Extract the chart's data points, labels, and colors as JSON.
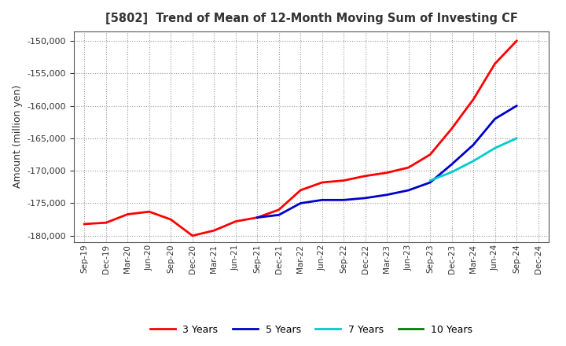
{
  "title": "[5802]  Trend of Mean of 12-Month Moving Sum of Investing CF",
  "ylabel": "Amount (million yen)",
  "ylim": [
    -181000,
    -148500
  ],
  "yticks": [
    -180000,
    -175000,
    -170000,
    -165000,
    -160000,
    -155000,
    -150000
  ],
  "background_color": "#ffffff",
  "plot_bg_color": "#ffffff",
  "grid_color": "#999999",
  "series": [
    {
      "label": "3 Years",
      "color": "#ff0000",
      "x": [
        "Sep-19",
        "Dec-19",
        "Mar-20",
        "Jun-20",
        "Sep-20",
        "Dec-20",
        "Mar-21",
        "Jun-21",
        "Sep-21",
        "Dec-21",
        "Mar-22",
        "Jun-22",
        "Sep-22",
        "Dec-22",
        "Mar-23",
        "Jun-23",
        "Sep-23",
        "Dec-23",
        "Mar-24",
        "Jun-24",
        "Sep-24"
      ],
      "y": [
        -178200,
        -178000,
        -176700,
        -176300,
        -177500,
        -180000,
        -179200,
        -177800,
        -177200,
        -176000,
        -173000,
        -171800,
        -171500,
        -170800,
        -170300,
        -169500,
        -167500,
        -163500,
        -159000,
        -153500,
        -150000
      ]
    },
    {
      "label": "5 Years",
      "color": "#0000cc",
      "x": [
        "Sep-21",
        "Dec-21",
        "Mar-22",
        "Jun-22",
        "Sep-22",
        "Dec-22",
        "Mar-23",
        "Jun-23",
        "Sep-23",
        "Dec-23",
        "Mar-24",
        "Jun-24",
        "Sep-24"
      ],
      "y": [
        -177200,
        -176800,
        -175000,
        -174500,
        -174500,
        -174200,
        -173700,
        -173000,
        -171800,
        -169000,
        -166000,
        -162000,
        -160000
      ]
    },
    {
      "label": "7 Years",
      "color": "#00cccc",
      "x": [
        "Sep-23",
        "Dec-23",
        "Mar-24",
        "Jun-24",
        "Sep-24"
      ],
      "y": [
        -171500,
        -170200,
        -168500,
        -166500,
        -165000
      ]
    },
    {
      "label": "10 Years",
      "color": "#008000",
      "x": [],
      "y": []
    }
  ],
  "xticks": [
    "Sep-19",
    "Dec-19",
    "Mar-20",
    "Jun-20",
    "Sep-20",
    "Dec-20",
    "Mar-21",
    "Jun-21",
    "Sep-21",
    "Dec-21",
    "Mar-22",
    "Jun-22",
    "Sep-22",
    "Dec-22",
    "Mar-23",
    "Jun-23",
    "Sep-23",
    "Dec-23",
    "Mar-24",
    "Jun-24",
    "Sep-24",
    "Dec-24"
  ]
}
